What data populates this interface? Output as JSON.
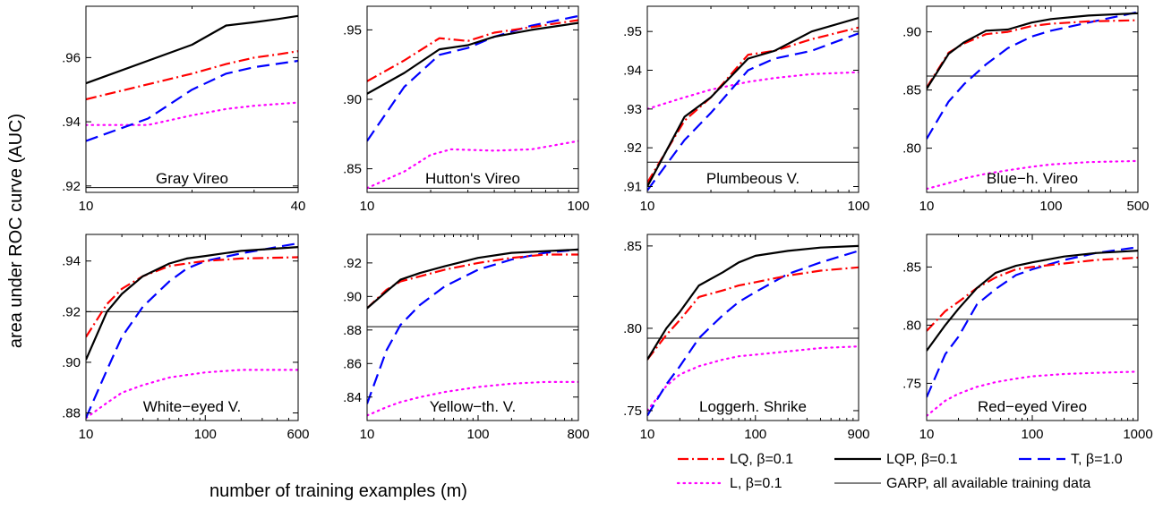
{
  "figure": {
    "ylabel": "area under ROC curve (AUC)",
    "xlabel": "number of training examples (m)",
    "xscale": "log"
  },
  "legend": [
    {
      "key": "LQ",
      "label": "LQ, β=0.1",
      "color": "#ff0000",
      "dash": "dashdot"
    },
    {
      "key": "LQP",
      "label": "LQP, β=0.1",
      "color": "#000000",
      "dash": "solid"
    },
    {
      "key": "T",
      "label": "T, β=1.0",
      "color": "#0000ff",
      "dash": "dash"
    },
    {
      "key": "L",
      "label": "L, β=0.1",
      "color": "#ff00ff",
      "dash": "dot"
    },
    {
      "key": "GARP",
      "label": "GARP, all available training data",
      "color": "#000000",
      "dash": "thin"
    }
  ],
  "chart_data": [
    {
      "type": "line",
      "title": "Gray Vireo",
      "xlim": [
        10,
        40
      ],
      "ylim": [
        0.918,
        0.976
      ],
      "xticks": [
        10,
        40
      ],
      "xtick_labels": [
        "10",
        "40"
      ],
      "yticks": [
        0.92,
        0.94,
        0.96
      ],
      "ytick_labels": [
        ".92",
        ".94",
        ".96"
      ],
      "garp": 0.9195,
      "series": [
        {
          "key": "LQ",
          "x": [
            10,
            20,
            25,
            30,
            35,
            40
          ],
          "y": [
            0.947,
            0.955,
            0.958,
            0.96,
            0.961,
            0.962
          ]
        },
        {
          "key": "LQP",
          "x": [
            10,
            20,
            25,
            30,
            35,
            40
          ],
          "y": [
            0.952,
            0.964,
            0.97,
            0.971,
            0.972,
            0.973
          ]
        },
        {
          "key": "T",
          "x": [
            10,
            15,
            20,
            25,
            30,
            40
          ],
          "y": [
            0.934,
            0.941,
            0.95,
            0.955,
            0.957,
            0.959
          ]
        },
        {
          "key": "L",
          "x": [
            10,
            15,
            20,
            25,
            30,
            40
          ],
          "y": [
            0.939,
            0.939,
            0.942,
            0.944,
            0.945,
            0.946
          ]
        }
      ]
    },
    {
      "type": "line",
      "title": "Hutton's Vireo",
      "xlim": [
        10,
        100
      ],
      "ylim": [
        0.833,
        0.967
      ],
      "xticks": [
        10,
        100
      ],
      "xtick_labels": [
        "10",
        "100"
      ],
      "yticks": [
        0.85,
        0.9,
        0.95
      ],
      "ytick_labels": [
        ".85",
        ".90",
        ".95"
      ],
      "garp": 0.836,
      "series": [
        {
          "key": "LQ",
          "x": [
            10,
            15,
            22,
            30,
            40,
            60,
            100
          ],
          "y": [
            0.913,
            0.928,
            0.944,
            0.942,
            0.948,
            0.952,
            0.957
          ]
        },
        {
          "key": "LQP",
          "x": [
            10,
            15,
            22,
            30,
            40,
            60,
            100
          ],
          "y": [
            0.904,
            0.919,
            0.936,
            0.939,
            0.945,
            0.95,
            0.955
          ]
        },
        {
          "key": "T",
          "x": [
            10,
            15,
            22,
            30,
            40,
            60,
            100
          ],
          "y": [
            0.87,
            0.909,
            0.932,
            0.937,
            0.945,
            0.953,
            0.96
          ]
        },
        {
          "key": "L",
          "x": [
            10,
            15,
            20,
            25,
            40,
            60,
            100
          ],
          "y": [
            0.836,
            0.848,
            0.86,
            0.864,
            0.863,
            0.864,
            0.87
          ]
        }
      ]
    },
    {
      "type": "line",
      "title": "Plumbeous V.",
      "xlim": [
        10,
        100
      ],
      "ylim": [
        0.9085,
        0.9565
      ],
      "xticks": [
        10,
        100
      ],
      "xtick_labels": [
        "10",
        "100"
      ],
      "yticks": [
        0.91,
        0.92,
        0.93,
        0.94,
        0.95
      ],
      "ytick_labels": [
        ".91",
        ".92",
        ".93",
        ".94",
        ".95"
      ],
      "garp": 0.9163,
      "series": [
        {
          "key": "LQ",
          "x": [
            10,
            15,
            20,
            30,
            40,
            60,
            100
          ],
          "y": [
            0.911,
            0.927,
            0.933,
            0.944,
            0.945,
            0.948,
            0.951
          ]
        },
        {
          "key": "LQP",
          "x": [
            10,
            15,
            20,
            30,
            40,
            60,
            100
          ],
          "y": [
            0.91,
            0.928,
            0.933,
            0.943,
            0.945,
            0.95,
            0.9535
          ]
        },
        {
          "key": "T",
          "x": [
            10,
            15,
            20,
            30,
            40,
            60,
            100
          ],
          "y": [
            0.909,
            0.922,
            0.929,
            0.94,
            0.943,
            0.945,
            0.9495
          ]
        },
        {
          "key": "L",
          "x": [
            10,
            15,
            20,
            30,
            40,
            60,
            100
          ],
          "y": [
            0.93,
            0.933,
            0.935,
            0.937,
            0.938,
            0.939,
            0.9395
          ]
        }
      ]
    },
    {
      "type": "line",
      "title": "Blue−h. Vireo",
      "xlim": [
        10,
        500
      ],
      "ylim": [
        0.762,
        0.922
      ],
      "xticks": [
        10,
        100,
        500
      ],
      "xtick_labels": [
        "10",
        "100",
        "500"
      ],
      "yticks": [
        0.8,
        0.85,
        0.9
      ],
      "ytick_labels": [
        ".80",
        ".85",
        ".90"
      ],
      "garp": 0.862,
      "series": [
        {
          "key": "LQ",
          "x": [
            10,
            15,
            20,
            30,
            45,
            70,
            100,
            200,
            500
          ],
          "y": [
            0.852,
            0.882,
            0.89,
            0.898,
            0.9,
            0.905,
            0.907,
            0.909,
            0.91
          ]
        },
        {
          "key": "LQP",
          "x": [
            10,
            15,
            20,
            30,
            45,
            70,
            100,
            200,
            500
          ],
          "y": [
            0.851,
            0.881,
            0.891,
            0.901,
            0.902,
            0.908,
            0.911,
            0.914,
            0.916
          ]
        },
        {
          "key": "T",
          "x": [
            10,
            15,
            20,
            30,
            45,
            70,
            100,
            200,
            500
          ],
          "y": [
            0.808,
            0.84,
            0.855,
            0.872,
            0.886,
            0.896,
            0.901,
            0.908,
            0.917
          ]
        },
        {
          "key": "L",
          "x": [
            10,
            15,
            20,
            30,
            45,
            70,
            100,
            200,
            500
          ],
          "y": [
            0.765,
            0.77,
            0.774,
            0.778,
            0.781,
            0.784,
            0.786,
            0.788,
            0.789
          ]
        }
      ]
    },
    {
      "type": "line",
      "title": "White−eyed V.",
      "xlim": [
        10,
        600
      ],
      "ylim": [
        0.877,
        0.9505
      ],
      "xticks": [
        10,
        100,
        600
      ],
      "xtick_labels": [
        "10",
        "100",
        "600"
      ],
      "yticks": [
        0.88,
        0.9,
        0.92,
        0.94
      ],
      "ytick_labels": [
        ".88",
        ".90",
        ".92",
        ".94"
      ],
      "garp": 0.92,
      "series": [
        {
          "key": "LQ",
          "x": [
            10,
            15,
            20,
            30,
            50,
            70,
            100,
            200,
            600
          ],
          "y": [
            0.91,
            0.923,
            0.929,
            0.934,
            0.938,
            0.939,
            0.94,
            0.941,
            0.9415
          ]
        },
        {
          "key": "LQP",
          "x": [
            10,
            15,
            20,
            30,
            50,
            70,
            100,
            200,
            600
          ],
          "y": [
            0.901,
            0.92,
            0.927,
            0.934,
            0.939,
            0.941,
            0.942,
            0.944,
            0.9455
          ]
        },
        {
          "key": "T",
          "x": [
            10,
            15,
            20,
            30,
            50,
            70,
            100,
            200,
            600
          ],
          "y": [
            0.878,
            0.897,
            0.91,
            0.922,
            0.932,
            0.937,
            0.94,
            0.943,
            0.947
          ]
        },
        {
          "key": "L",
          "x": [
            10,
            15,
            20,
            30,
            50,
            70,
            100,
            200,
            600
          ],
          "y": [
            0.878,
            0.884,
            0.888,
            0.891,
            0.894,
            0.895,
            0.896,
            0.897,
            0.897
          ]
        }
      ]
    },
    {
      "type": "line",
      "title": "Yellow−th. V.",
      "xlim": [
        10,
        800
      ],
      "ylim": [
        0.826,
        0.937
      ],
      "xticks": [
        10,
        100,
        800
      ],
      "xtick_labels": [
        "10",
        "100",
        "800"
      ],
      "yticks": [
        0.84,
        0.86,
        0.88,
        0.9,
        0.92
      ],
      "ytick_labels": [
        ".84",
        ".86",
        ".88",
        ".90",
        ".92"
      ],
      "garp": 0.882,
      "series": [
        {
          "key": "LQ",
          "x": [
            10,
            15,
            20,
            30,
            50,
            100,
            200,
            400,
            800
          ],
          "y": [
            0.893,
            0.904,
            0.909,
            0.912,
            0.916,
            0.92,
            0.923,
            0.925,
            0.925
          ]
        },
        {
          "key": "LQP",
          "x": [
            10,
            15,
            20,
            30,
            50,
            100,
            200,
            400,
            800
          ],
          "y": [
            0.893,
            0.903,
            0.91,
            0.914,
            0.918,
            0.923,
            0.926,
            0.927,
            0.928
          ]
        },
        {
          "key": "T",
          "x": [
            10,
            15,
            20,
            30,
            50,
            100,
            200,
            400,
            800
          ],
          "y": [
            0.836,
            0.868,
            0.883,
            0.895,
            0.906,
            0.916,
            0.922,
            0.926,
            0.928
          ]
        },
        {
          "key": "L",
          "x": [
            10,
            15,
            20,
            30,
            50,
            100,
            200,
            400,
            800
          ],
          "y": [
            0.829,
            0.834,
            0.837,
            0.84,
            0.843,
            0.846,
            0.848,
            0.849,
            0.849
          ]
        }
      ]
    },
    {
      "type": "line",
      "title": "Loggerh. Shrike",
      "xlim": [
        10,
        900
      ],
      "ylim": [
        0.744,
        0.857
      ],
      "xticks": [
        10,
        100,
        900
      ],
      "xtick_labels": [
        "10",
        "100",
        "900"
      ],
      "yticks": [
        0.75,
        0.8,
        0.85
      ],
      "ytick_labels": [
        ".75",
        ".80",
        ".85"
      ],
      "garp": 0.794,
      "series": [
        {
          "key": "LQ",
          "x": [
            10,
            15,
            20,
            30,
            50,
            70,
            100,
            200,
            400,
            900
          ],
          "y": [
            0.781,
            0.796,
            0.805,
            0.819,
            0.823,
            0.826,
            0.828,
            0.832,
            0.835,
            0.837
          ]
        },
        {
          "key": "LQP",
          "x": [
            10,
            15,
            20,
            30,
            50,
            70,
            100,
            200,
            400,
            900
          ],
          "y": [
            0.781,
            0.8,
            0.81,
            0.826,
            0.834,
            0.84,
            0.844,
            0.847,
            0.849,
            0.85
          ]
        },
        {
          "key": "T",
          "x": [
            10,
            15,
            20,
            30,
            50,
            70,
            100,
            200,
            400,
            900
          ],
          "y": [
            0.747,
            0.766,
            0.777,
            0.794,
            0.808,
            0.816,
            0.822,
            0.833,
            0.84,
            0.847
          ]
        },
        {
          "key": "L",
          "x": [
            10,
            15,
            20,
            30,
            50,
            70,
            100,
            200,
            400,
            900
          ],
          "y": [
            0.75,
            0.765,
            0.772,
            0.777,
            0.781,
            0.783,
            0.784,
            0.786,
            0.788,
            0.789
          ]
        }
      ]
    },
    {
      "type": "line",
      "title": "Red−eyed Vireo",
      "xlim": [
        10,
        1000
      ],
      "ylim": [
        0.718,
        0.878
      ],
      "xticks": [
        10,
        100,
        1000
      ],
      "xtick_labels": [
        "10",
        "100",
        "1000"
      ],
      "yticks": [
        0.75,
        0.8,
        0.85
      ],
      "ytick_labels": [
        ".75",
        ".80",
        ".85"
      ],
      "garp": 0.805,
      "series": [
        {
          "key": "LQ",
          "x": [
            10,
            15,
            20,
            30,
            45,
            70,
            100,
            200,
            400,
            1000
          ],
          "y": [
            0.795,
            0.812,
            0.82,
            0.832,
            0.841,
            0.848,
            0.85,
            0.853,
            0.856,
            0.858
          ]
        },
        {
          "key": "LQP",
          "x": [
            10,
            15,
            20,
            30,
            45,
            70,
            100,
            200,
            400,
            1000
          ],
          "y": [
            0.778,
            0.8,
            0.814,
            0.832,
            0.845,
            0.851,
            0.854,
            0.859,
            0.862,
            0.864
          ]
        },
        {
          "key": "T",
          "x": [
            10,
            15,
            20,
            30,
            45,
            70,
            100,
            200,
            400,
            1000
          ],
          "y": [
            0.738,
            0.775,
            0.79,
            0.818,
            0.831,
            0.843,
            0.848,
            0.856,
            0.862,
            0.867
          ]
        },
        {
          "key": "L",
          "x": [
            10,
            15,
            20,
            30,
            45,
            70,
            100,
            200,
            400,
            1000
          ],
          "y": [
            0.722,
            0.735,
            0.741,
            0.747,
            0.751,
            0.754,
            0.756,
            0.758,
            0.759,
            0.76
          ]
        }
      ]
    }
  ]
}
